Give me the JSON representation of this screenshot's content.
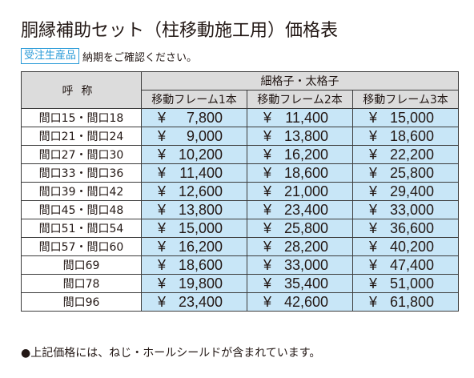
{
  "title": "胴縁補助セット（柱移動施工用）価格表",
  "badge": "受注生産品",
  "note": "納期をご確認ください。",
  "table": {
    "name_header": "呼称",
    "group_header": "細格子・太格子",
    "columns": [
      "移動フレーム1本",
      "移動フレーム2本",
      "移動フレーム3本"
    ],
    "currency": "¥",
    "rows": [
      {
        "name": "間口15・間口18",
        "prices": [
          "7,800",
          "11,400",
          "15,000"
        ]
      },
      {
        "name": "間口21・間口24",
        "prices": [
          "9,000",
          "13,800",
          "18,600"
        ]
      },
      {
        "name": "間口27・間口30",
        "prices": [
          "10,200",
          "16,200",
          "22,200"
        ]
      },
      {
        "name": "間口33・間口36",
        "prices": [
          "11,400",
          "18,600",
          "25,800"
        ]
      },
      {
        "name": "間口39・間口42",
        "prices": [
          "12,600",
          "21,000",
          "29,400"
        ]
      },
      {
        "name": "間口45・間口48",
        "prices": [
          "13,800",
          "23,400",
          "33,000"
        ]
      },
      {
        "name": "間口51・間口54",
        "prices": [
          "15,000",
          "25,800",
          "36,600"
        ]
      },
      {
        "name": "間口57・間口60",
        "prices": [
          "16,200",
          "28,200",
          "40,200"
        ]
      },
      {
        "name": "間口69",
        "prices": [
          "18,600",
          "33,000",
          "47,400"
        ]
      },
      {
        "name": "間口78",
        "prices": [
          "19,800",
          "35,400",
          "51,000"
        ]
      },
      {
        "name": "間口96",
        "prices": [
          "23,400",
          "42,600",
          "61,800"
        ]
      }
    ]
  },
  "footnote": "●上記価格には、ねじ・ホールシールドが含まれています。",
  "colors": {
    "price_bg": "#c8e6f7",
    "header_bg": "#dcdcdc",
    "badge": "#2a9bd8"
  }
}
